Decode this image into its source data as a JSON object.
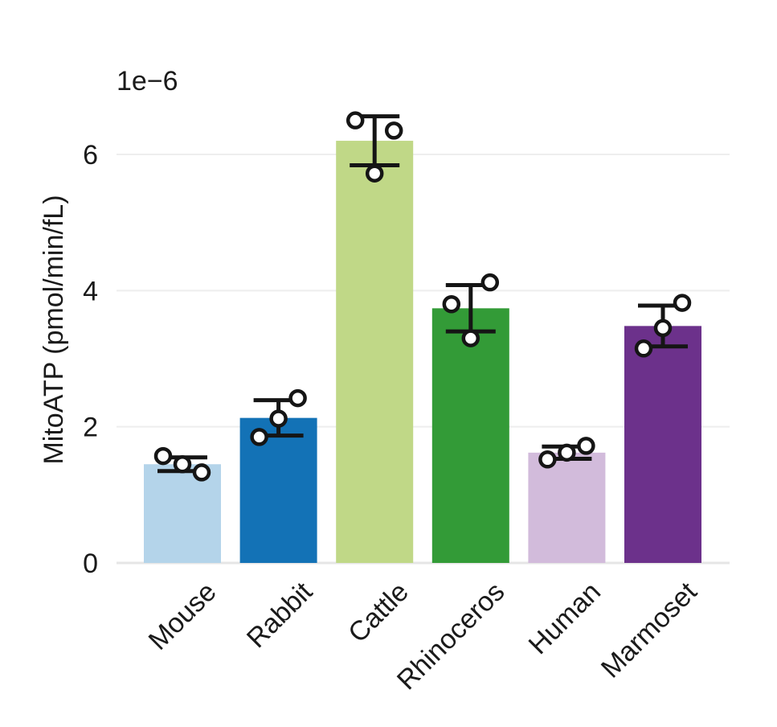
{
  "chart_data": {
    "type": "bar",
    "title": "",
    "xlabel": "",
    "ylabel": "MitoATP (pmol/min/fL)",
    "y_exponent_label": "1e−6",
    "ylim": [
      0,
      6.5
    ],
    "yticks": [
      "0",
      "2",
      "4",
      "6"
    ],
    "grid": "horizontal",
    "categories": [
      "Mouse",
      "Rabbit",
      "Cattle",
      "Rhinoceros",
      "Human",
      "Marmoset"
    ],
    "values": [
      1.45,
      2.13,
      6.2,
      3.74,
      1.62,
      3.48
    ],
    "error": [
      0.1,
      0.26,
      0.36,
      0.34,
      0.09,
      0.3
    ],
    "colors": [
      "#b4d4ea",
      "#1372b6",
      "#c0d887",
      "#339b37",
      "#d2bbdb",
      "#6c318b"
    ],
    "points": [
      [
        1.57,
        1.33,
        1.45
      ],
      [
        1.85,
        2.42,
        2.12
      ],
      [
        6.5,
        6.35,
        5.72
      ],
      [
        3.8,
        4.12,
        3.3
      ],
      [
        1.52,
        1.72,
        1.62
      ],
      [
        3.15,
        3.82,
        3.45
      ]
    ]
  }
}
